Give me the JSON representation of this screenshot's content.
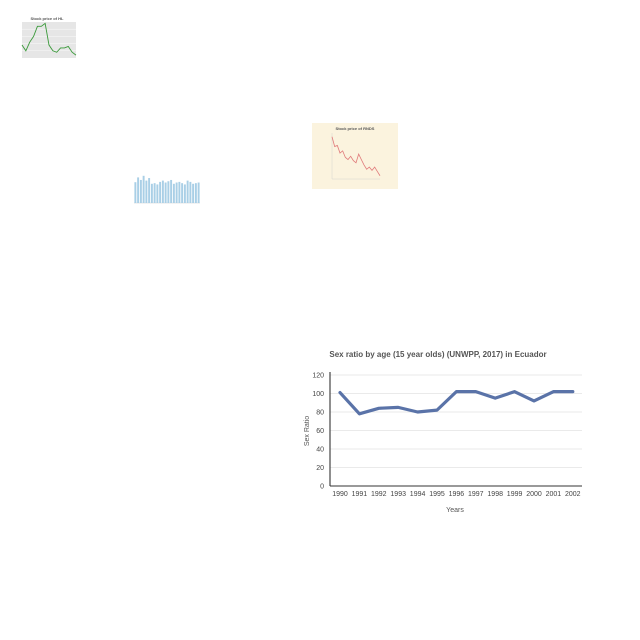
{
  "chart_data": [
    {
      "type": "line",
      "title": "Stock price of HL",
      "color": "#3a9a3a",
      "background": "#e6e6e6",
      "xlabel": "",
      "ylabel": "",
      "x_tick_labels": [
        "",
        "",
        "",
        "",
        "",
        ""
      ],
      "values": [
        48,
        40,
        52,
        60,
        74,
        74,
        78,
        48,
        40,
        38,
        44,
        44,
        46,
        38,
        34
      ],
      "ylim": [
        30,
        80
      ]
    },
    {
      "type": "bar",
      "title": "",
      "color": "#a9cfe6",
      "xlabel": "",
      "ylabel": "",
      "values": [
        65,
        80,
        72,
        85,
        70,
        78,
        60,
        62,
        58,
        66,
        70,
        64,
        68,
        72,
        60,
        64,
        66,
        62,
        58,
        70,
        66,
        60,
        62,
        64
      ],
      "ylim": [
        0,
        100
      ]
    },
    {
      "type": "line",
      "title": "Stock price of RNDS",
      "color": "#e07b7b",
      "background": "#fbf3de",
      "xlabel": "",
      "ylabel": "",
      "values": [
        88,
        70,
        72,
        58,
        62,
        50,
        46,
        52,
        44,
        40,
        56,
        46,
        36,
        28,
        32,
        26,
        32,
        24,
        16
      ],
      "ylim": [
        10,
        95
      ]
    },
    {
      "type": "line",
      "title": "Sex ratio by age (15 year olds) (UNWPP, 2017) in Ecuador",
      "xlabel": "Years",
      "ylabel": "Sex Ratio",
      "color": "#5a73a8",
      "categories": [
        "1990",
        "1991",
        "1992",
        "1993",
        "1994",
        "1995",
        "1996",
        "1997",
        "1998",
        "1999",
        "2000",
        "2001",
        "2002"
      ],
      "values": [
        101,
        78,
        84,
        85,
        80,
        82,
        102,
        102,
        95,
        102,
        92,
        102,
        102
      ],
      "y_ticks": [
        "0",
        "20",
        "40",
        "60",
        "80",
        "100",
        "120"
      ],
      "ylim": [
        0,
        120
      ],
      "grid": true
    }
  ]
}
